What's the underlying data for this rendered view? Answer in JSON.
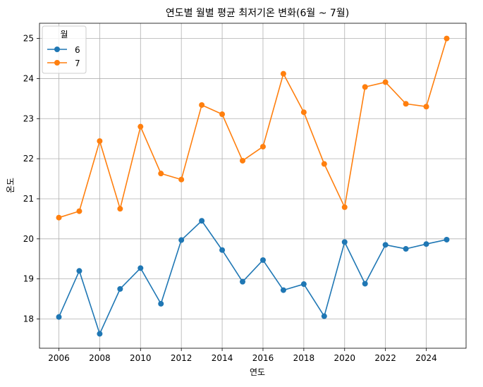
{
  "chart_data": {
    "type": "line",
    "title": "연도별 월별 평균 최저기온 변화(6월 ~ 7월)",
    "xlabel": "연도",
    "ylabel": "온도",
    "x": [
      2006,
      2007,
      2008,
      2009,
      2010,
      2011,
      2012,
      2013,
      2014,
      2015,
      2016,
      2017,
      2018,
      2019,
      2020,
      2021,
      2022,
      2023,
      2024,
      2025
    ],
    "xlim": [
      2005.05,
      2025.95
    ],
    "ylim": [
      17.27,
      25.38
    ],
    "xticks": [
      "2006",
      "2008",
      "2010",
      "2012",
      "2014",
      "2016",
      "2018",
      "2020",
      "2022",
      "2024"
    ],
    "yticks": [
      "18",
      "19",
      "20",
      "21",
      "22",
      "23",
      "24",
      "25"
    ],
    "grid": true,
    "legend": {
      "title": "월",
      "position": "top-left"
    },
    "series": [
      {
        "name": "6",
        "color": "#1f77b4",
        "values": [
          18.05,
          19.2,
          17.63,
          18.75,
          19.27,
          18.38,
          19.97,
          20.45,
          19.72,
          18.93,
          19.47,
          18.72,
          18.87,
          18.07,
          19.92,
          18.88,
          19.85,
          19.75,
          19.87,
          19.98
        ]
      },
      {
        "name": "7",
        "color": "#ff7f0e",
        "values": [
          20.53,
          20.69,
          22.44,
          20.75,
          22.8,
          21.63,
          21.48,
          23.34,
          23.11,
          21.95,
          22.3,
          24.12,
          23.16,
          21.87,
          20.79,
          23.79,
          23.91,
          23.37,
          23.3,
          25.0
        ]
      }
    ]
  }
}
